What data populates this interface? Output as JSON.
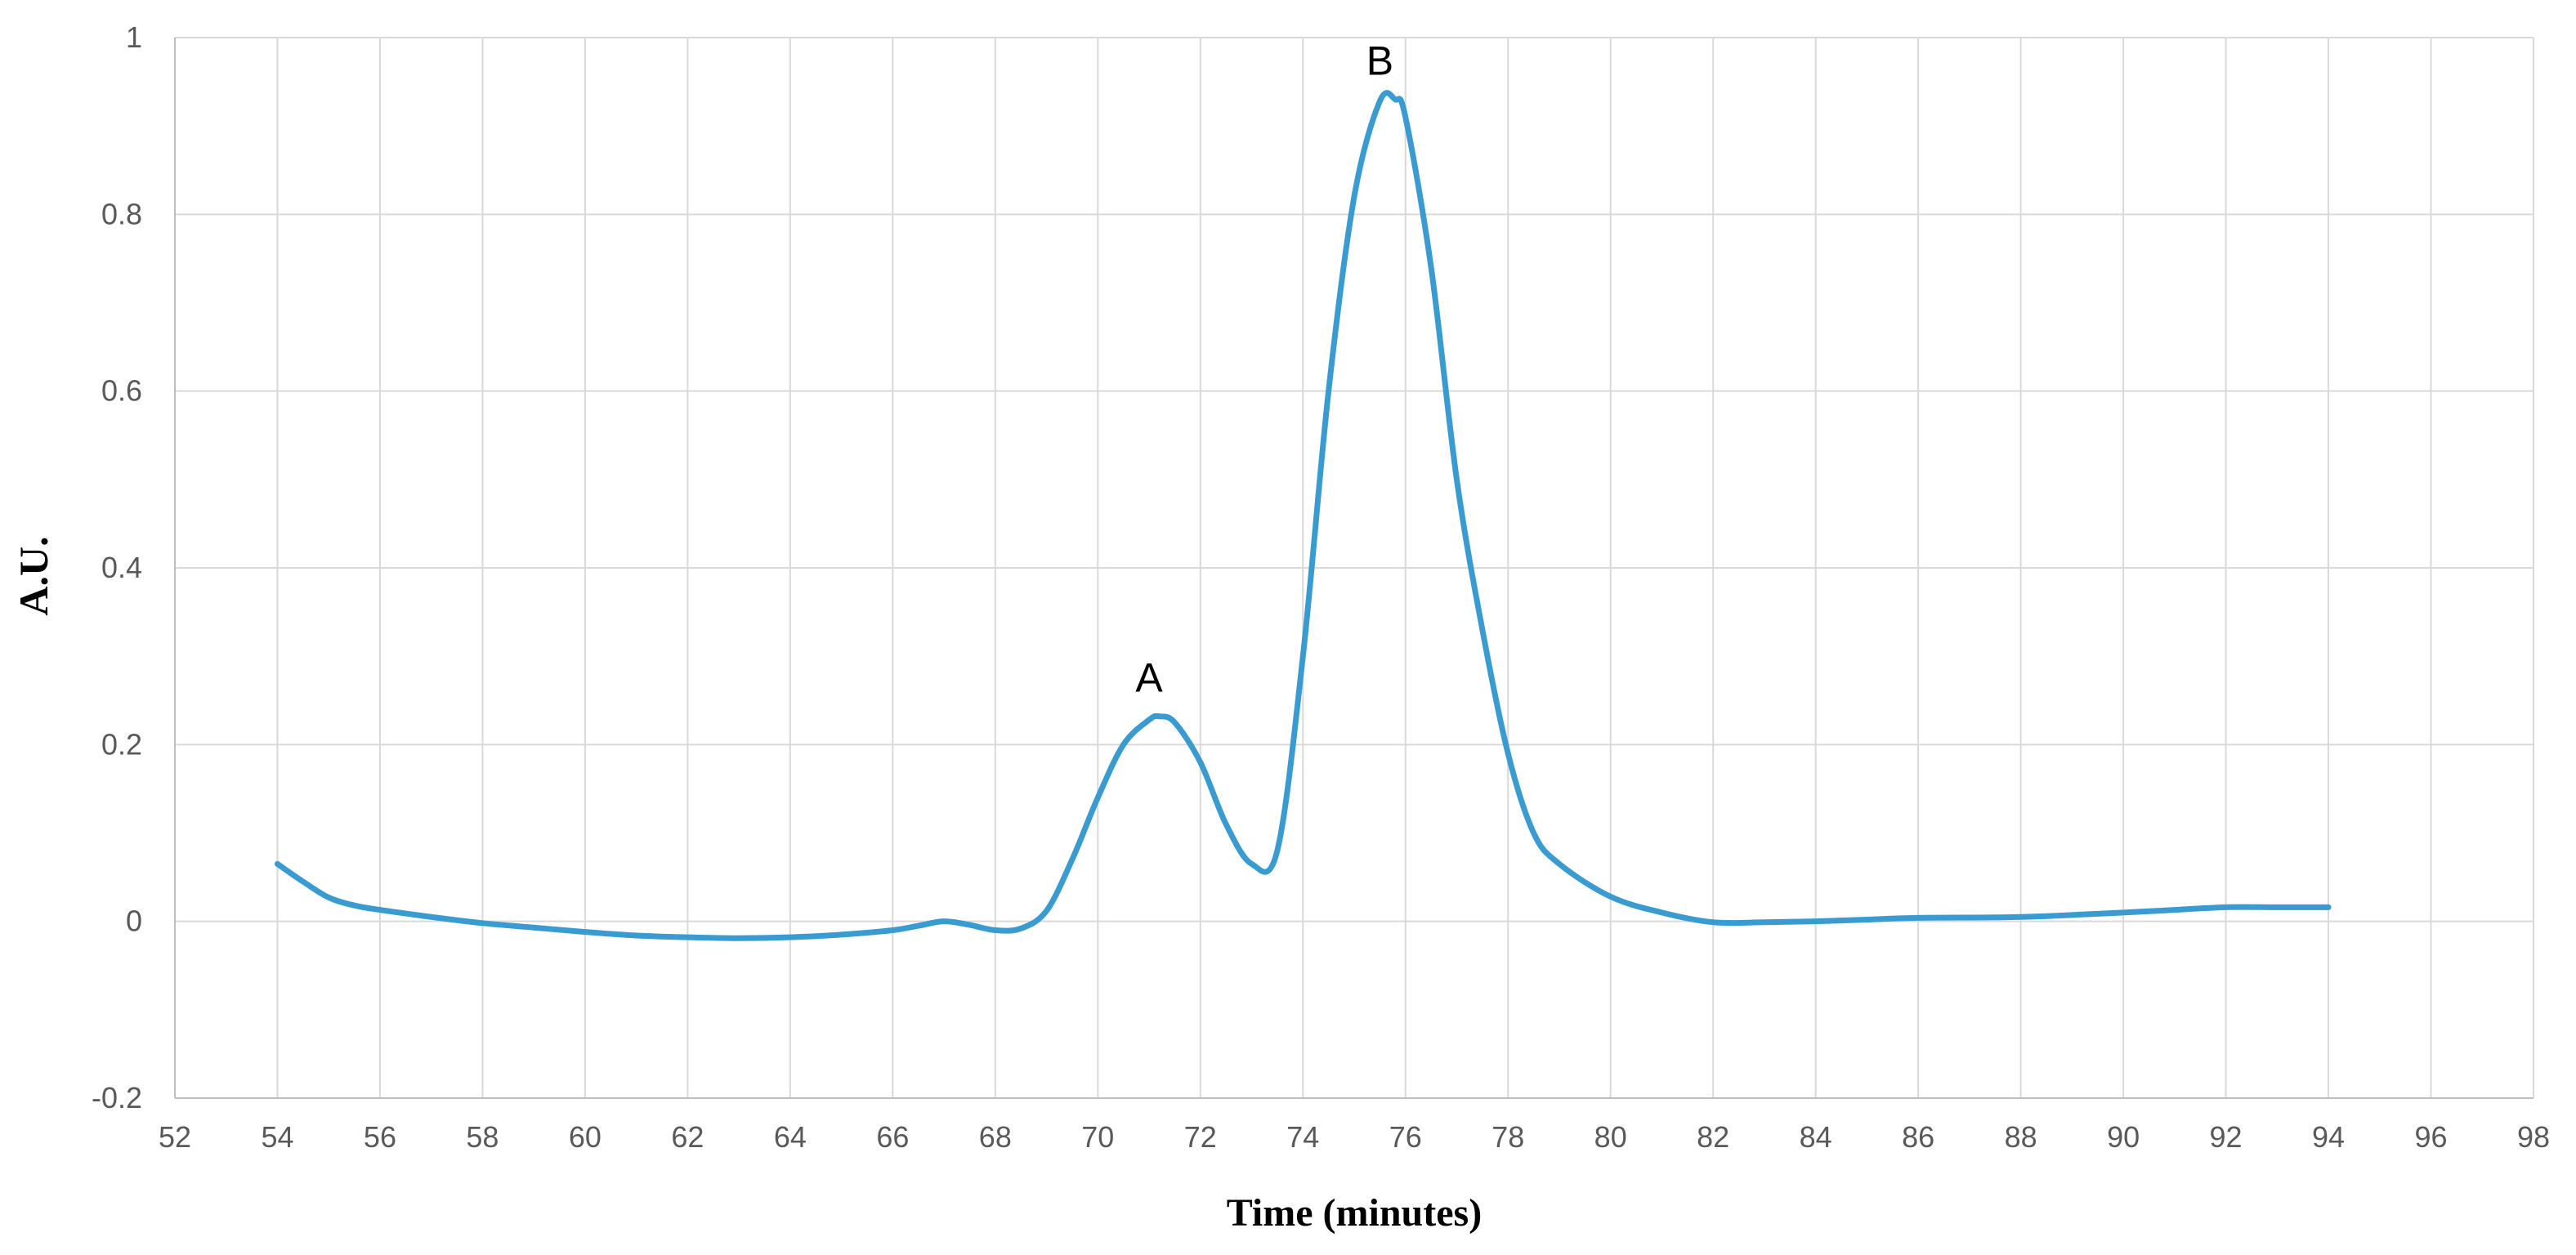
{
  "chart_data": {
    "type": "line",
    "title": "",
    "xlabel": "Time (minutes)",
    "ylabel": "A.U.",
    "xlim": [
      52,
      98
    ],
    "ylim": [
      -0.2,
      1
    ],
    "x_ticks": [
      52,
      54,
      56,
      58,
      60,
      62,
      64,
      66,
      68,
      70,
      72,
      74,
      76,
      78,
      80,
      82,
      84,
      86,
      88,
      90,
      92,
      94,
      96,
      98
    ],
    "y_ticks": [
      -0.2,
      0,
      0.2,
      0.4,
      0.6,
      0.8,
      1
    ],
    "grid": true,
    "legend": "none",
    "colors": {
      "series": "#3a9bd0",
      "grid": "#d9d9d9",
      "tick_text": "#595959"
    },
    "series": [
      {
        "x": [
          54,
          54.5,
          55,
          55.5,
          56,
          57,
          58,
          59,
          60,
          61,
          62,
          63,
          64,
          65,
          66,
          66.5,
          67,
          67.5,
          68,
          68.5,
          69,
          69.5,
          70,
          70.5,
          71,
          71.2,
          71.5,
          72,
          72.5,
          73,
          73.5,
          74,
          74.5,
          75,
          75.5,
          75.8,
          76,
          76.5,
          77,
          77.5,
          78,
          78.5,
          79,
          80,
          81,
          82,
          83,
          84,
          85,
          86,
          88,
          90,
          91,
          92,
          93,
          94
        ],
        "y": [
          0.065,
          0.045,
          0.027,
          0.018,
          0.013,
          0.005,
          -0.002,
          -0.007,
          -0.012,
          -0.016,
          -0.018,
          -0.019,
          -0.018,
          -0.015,
          -0.01,
          -0.005,
          0.0,
          -0.004,
          -0.01,
          -0.008,
          0.012,
          0.07,
          0.14,
          0.2,
          0.228,
          0.232,
          0.225,
          0.18,
          0.11,
          0.065,
          0.08,
          0.3,
          0.6,
          0.82,
          0.928,
          0.93,
          0.91,
          0.74,
          0.5,
          0.33,
          0.19,
          0.1,
          0.065,
          0.028,
          0.01,
          -0.001,
          -0.001,
          0.0,
          0.002,
          0.004,
          0.005,
          0.01,
          0.013,
          0.016,
          0.016,
          0.016
        ]
      }
    ],
    "annotations": [
      {
        "text": "A",
        "x": 71,
        "y": 0.232
      },
      {
        "text": "B",
        "x": 75.5,
        "y": 0.93
      }
    ]
  }
}
